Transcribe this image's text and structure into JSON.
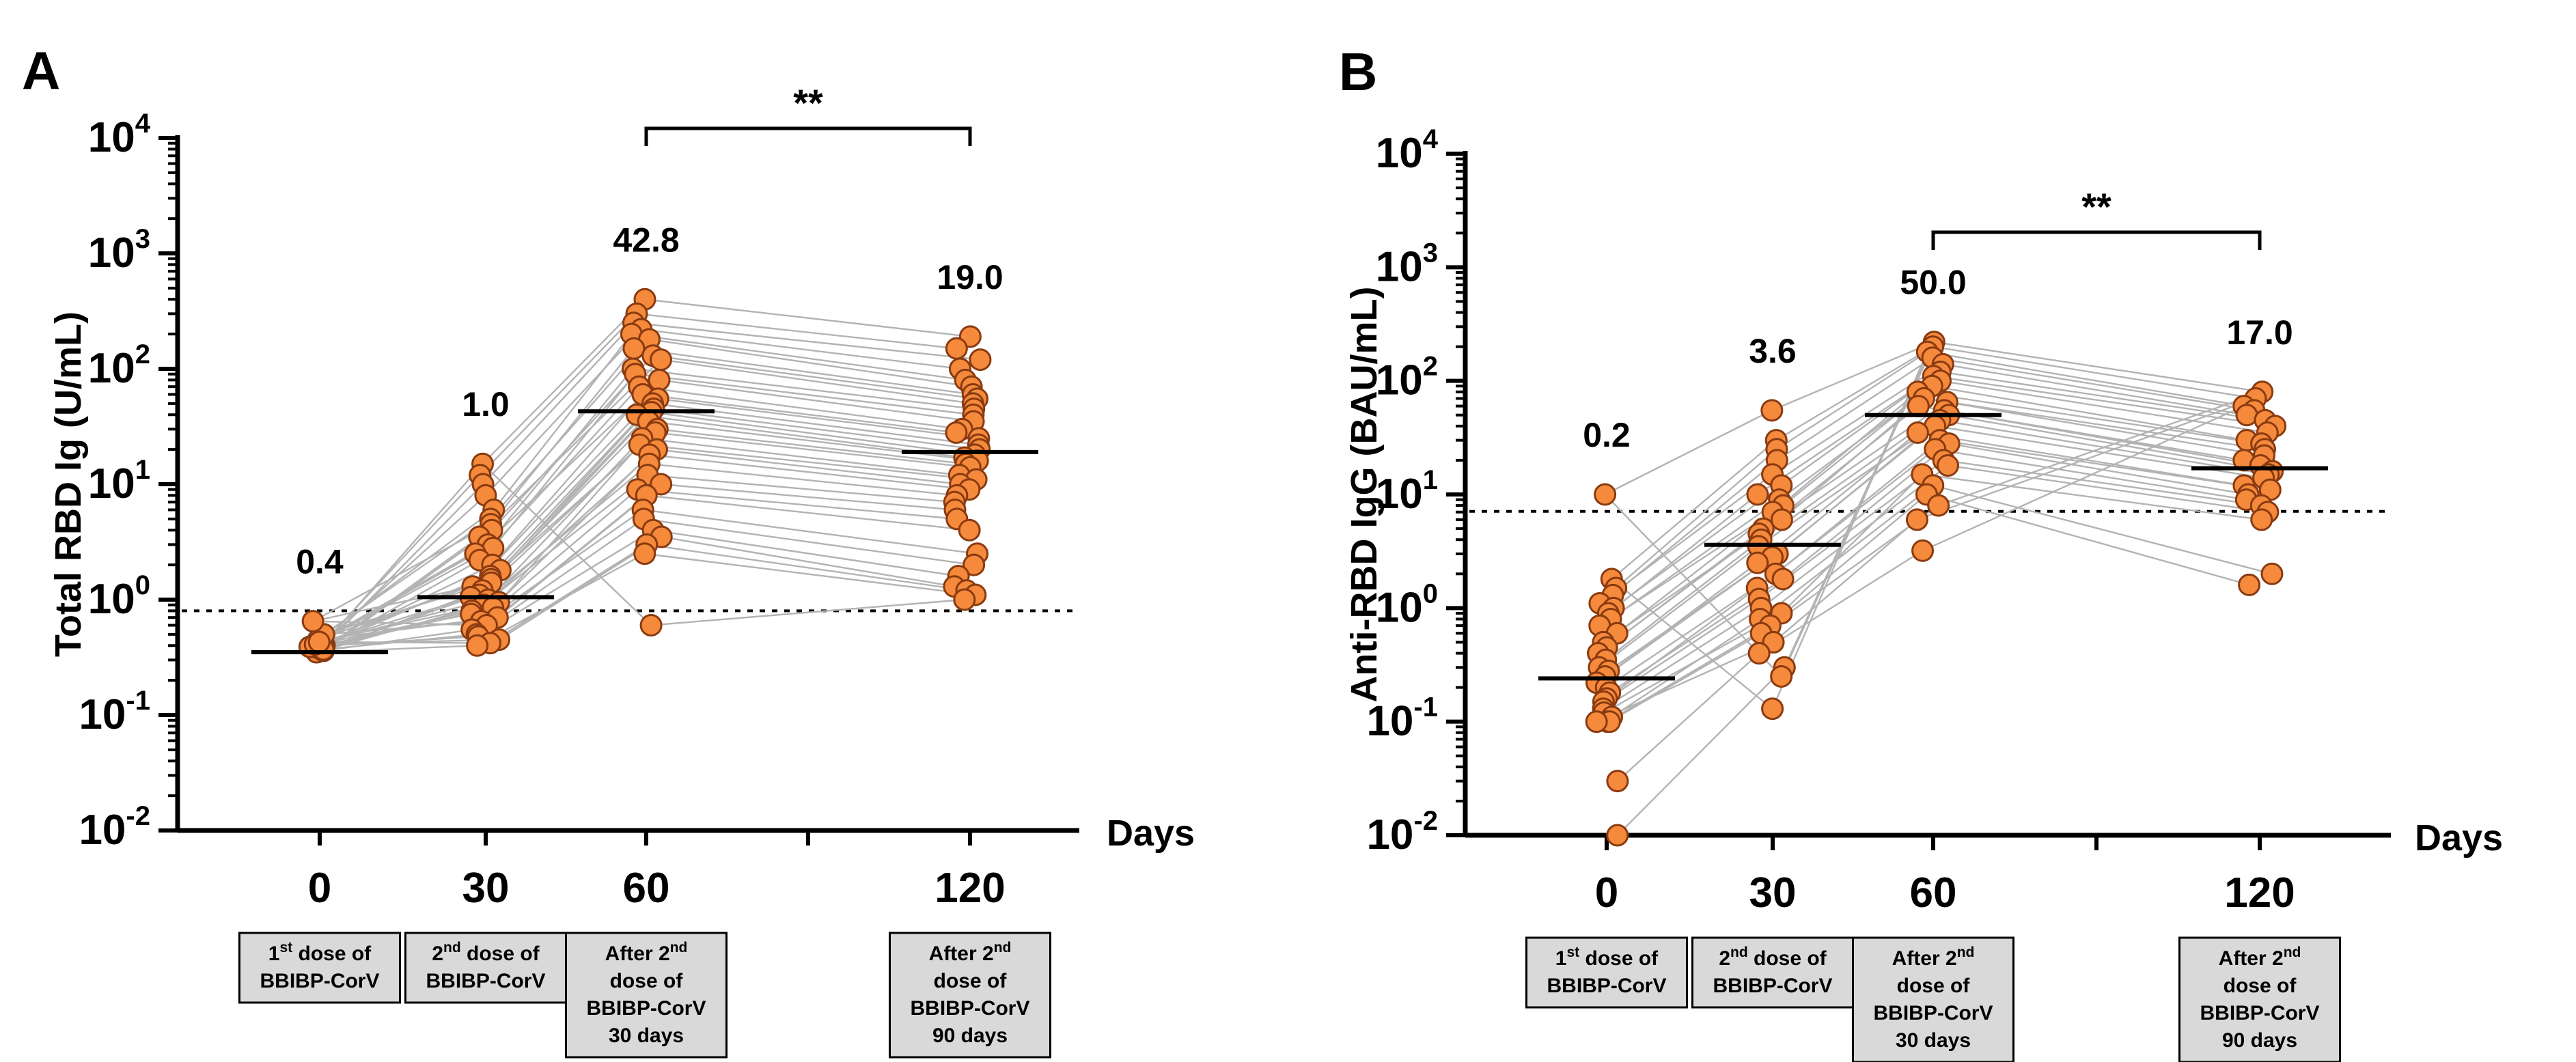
{
  "chart_data": [
    {
      "type": "scatter",
      "panel_label": "A",
      "ylabel": "Total RBD Ig (U/mL)",
      "xlabel": "Days",
      "yscale": "log10",
      "ylim_exp": [
        -2,
        4
      ],
      "y_ticks": [
        {
          "base": "10",
          "exp": "-2",
          "value": -2
        },
        {
          "base": "10",
          "exp": "-1",
          "value": -1
        },
        {
          "base": "10",
          "exp": "0",
          "value": 0
        },
        {
          "base": "10",
          "exp": "1",
          "value": 1
        },
        {
          "base": "10",
          "exp": "2",
          "value": 2
        },
        {
          "base": "10",
          "exp": "3",
          "value": 3
        },
        {
          "base": "10",
          "exp": "4",
          "value": 4
        }
      ],
      "detection_limit": 0.8,
      "categories": [
        {
          "label": "0",
          "medianLabel": "0.4",
          "median": 0.35,
          "box": [
            "1st dose of",
            "BBIBP-CorV"
          ],
          "box_sup": [
            [
              "1",
              "st",
              " dose of"
            ],
            [
              "BBIBP-CorV"
            ]
          ]
        },
        {
          "label": "30",
          "medianLabel": "1.0",
          "median": 1.05,
          "box": [
            "2nd dose of",
            "BBIBP-CorV"
          ],
          "box_sup": [
            [
              "2",
              "nd",
              " dose of"
            ],
            [
              "BBIBP-CorV"
            ]
          ]
        },
        {
          "label": "60",
          "medianLabel": "42.8",
          "median": 42.8,
          "box": [
            "After 2nd",
            "dose of",
            "BBIBP-CorV",
            "30 days"
          ],
          "box_sup": [
            [
              "After 2",
              "nd",
              ""
            ],
            [
              "dose of"
            ],
            [
              "BBIBP-CorV"
            ],
            [
              "30 days"
            ]
          ]
        },
        {
          "label": "120",
          "medianLabel": "19.0",
          "median": 19.0,
          "box": [
            "After 2nd",
            "dose of",
            "BBIBP-CorV",
            "90 days"
          ],
          "box_sup": [
            [
              "After 2",
              "nd",
              ""
            ],
            [
              "dose of"
            ],
            [
              "BBIBP-CorV"
            ],
            [
              "90 days"
            ]
          ]
        }
      ],
      "significance": {
        "from": 2,
        "to": 3,
        "label": "**"
      },
      "series": [
        {
          "name": "day0",
          "values": [
            0.35,
            0.38,
            0.4,
            0.42,
            0.45,
            0.5,
            0.65,
            0.36,
            0.37,
            0.39,
            0.41,
            0.43
          ]
        },
        {
          "name": "day30",
          "values": [
            15,
            12,
            10,
            8,
            6,
            5,
            4.5,
            4,
            3.5,
            3,
            2.8,
            2.5,
            2.2,
            2,
            1.8,
            1.6,
            1.5,
            1.4,
            1.3,
            1.2,
            1.1,
            1.05,
            1.0,
            0.95,
            0.9,
            0.85,
            0.8,
            0.75,
            0.7,
            0.65,
            0.6,
            0.55,
            0.5,
            0.48,
            0.45,
            0.42,
            0.4
          ]
        },
        {
          "name": "day60",
          "values": [
            400,
            300,
            250,
            220,
            200,
            180,
            150,
            130,
            120,
            100,
            90,
            80,
            70,
            60,
            55,
            50,
            45,
            42,
            40,
            35,
            30,
            28,
            25,
            22,
            20,
            18,
            15,
            12,
            10,
            9,
            8,
            6,
            5,
            4,
            3.5,
            3,
            2.5,
            0.6
          ]
        },
        {
          "name": "day120",
          "values": [
            190,
            150,
            120,
            100,
            80,
            70,
            60,
            55,
            50,
            45,
            40,
            35,
            30,
            28,
            25,
            22,
            20,
            18,
            17,
            16,
            15,
            14,
            12,
            11,
            10,
            9,
            8,
            7,
            6,
            5,
            4,
            2.5,
            2,
            1.6,
            1.3,
            1.2,
            1.1,
            1.0
          ]
        }
      ]
    },
    {
      "type": "scatter",
      "panel_label": "B",
      "ylabel": "Anti-RBD IgG (BAU/mL)",
      "xlabel": "Days",
      "yscale": "log10",
      "ylim_exp": [
        -2,
        4
      ],
      "y_ticks": [
        {
          "base": "10",
          "exp": "-2",
          "value": -2
        },
        {
          "base": "10",
          "exp": "-1",
          "value": -1
        },
        {
          "base": "10",
          "exp": "0",
          "value": 0
        },
        {
          "base": "10",
          "exp": "1",
          "value": 1
        },
        {
          "base": "10",
          "exp": "2",
          "value": 2
        },
        {
          "base": "10",
          "exp": "3",
          "value": 3
        },
        {
          "base": "10",
          "exp": "4",
          "value": 4
        }
      ],
      "detection_limit": 7.1,
      "categories": [
        {
          "label": "0",
          "medianLabel": "0.2",
          "median": 0.24,
          "box": [
            "1st dose of",
            "BBIBP-CorV"
          ],
          "box_sup": [
            [
              "1",
              "st",
              " dose of"
            ],
            [
              "BBIBP-CorV"
            ]
          ]
        },
        {
          "label": "30",
          "medianLabel": "3.6",
          "median": 3.6,
          "box": [
            "2nd dose of",
            "BBIBP-CorV"
          ],
          "box_sup": [
            [
              "2",
              "nd",
              " dose of"
            ],
            [
              "BBIBP-CorV"
            ]
          ]
        },
        {
          "label": "60",
          "medianLabel": "50.0",
          "median": 50.0,
          "box": [
            "After 2nd",
            "dose of",
            "BBIBP-CorV",
            "30 days"
          ],
          "box_sup": [
            [
              "After 2",
              "nd",
              ""
            ],
            [
              "dose of"
            ],
            [
              "BBIBP-CorV"
            ],
            [
              "30 days"
            ]
          ]
        },
        {
          "label": "120",
          "medianLabel": "17.0",
          "median": 17.0,
          "box": [
            "After 2nd",
            "dose of",
            "BBIBP-CorV",
            "90 days"
          ],
          "box_sup": [
            [
              "After 2",
              "nd",
              ""
            ],
            [
              "dose of"
            ],
            [
              "BBIBP-CorV"
            ],
            [
              "90 days"
            ]
          ]
        }
      ],
      "significance": {
        "from": 2,
        "to": 3,
        "label": "**"
      },
      "series": [
        {
          "name": "day0",
          "values": [
            10,
            1.8,
            1.5,
            1.3,
            1.1,
            1.0,
            0.9,
            0.8,
            0.7,
            0.6,
            0.5,
            0.45,
            0.4,
            0.35,
            0.3,
            0.28,
            0.25,
            0.22,
            0.2,
            0.18,
            0.16,
            0.15,
            0.13,
            0.12,
            0.11,
            0.1,
            0.1,
            0.1,
            0.03,
            0.01
          ]
        },
        {
          "name": "day30",
          "values": [
            55,
            30,
            25,
            20,
            15,
            12,
            10,
            9,
            8,
            7,
            6,
            5,
            4.5,
            4,
            3.5,
            3,
            2.8,
            2.5,
            2,
            1.8,
            1.5,
            1.2,
            1.0,
            0.9,
            0.8,
            0.7,
            0.6,
            0.5,
            0.4,
            0.3,
            0.25,
            0.13
          ]
        },
        {
          "name": "day60",
          "values": [
            220,
            200,
            180,
            160,
            140,
            120,
            110,
            100,
            90,
            80,
            70,
            65,
            60,
            55,
            50,
            45,
            40,
            35,
            30,
            28,
            25,
            20,
            18,
            15,
            12,
            10,
            8,
            6,
            3.2
          ]
        },
        {
          "name": "day120",
          "values": [
            80,
            70,
            60,
            55,
            50,
            45,
            40,
            35,
            30,
            28,
            25,
            22,
            20,
            18,
            16,
            15,
            14,
            12,
            11,
            10,
            9,
            8,
            7,
            6,
            2,
            1.6
          ]
        }
      ]
    }
  ]
}
